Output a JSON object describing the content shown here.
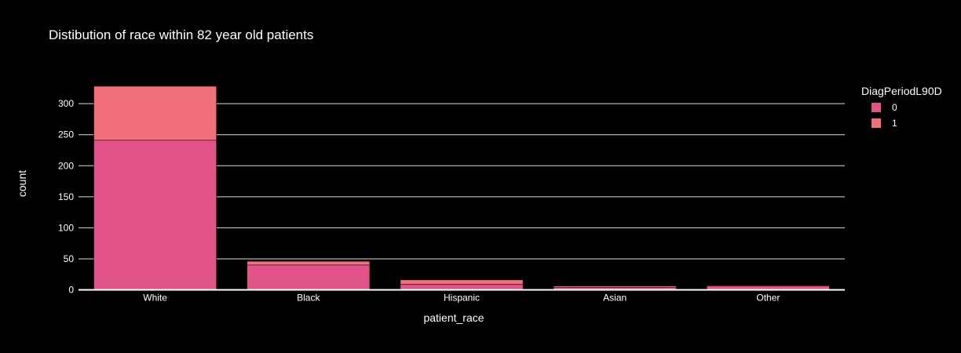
{
  "chart_data": {
    "type": "bar",
    "barmode": "stack",
    "title": "Distibution of race within 82 year old patients",
    "xlabel": "patient_race",
    "ylabel": "count",
    "categories": [
      "White",
      "Black",
      "Hispanic",
      "Asian",
      "Other"
    ],
    "series": [
      {
        "name": "0",
        "values": [
          241,
          40,
          9,
          4,
          6
        ],
        "color": "#e2538a"
      },
      {
        "name": "1",
        "values": [
          87,
          6,
          7,
          2,
          1
        ],
        "color": "#f2707c"
      }
    ],
    "ylim": [
      0,
      328
    ],
    "yticks": [
      0,
      50,
      100,
      150,
      200,
      250,
      300
    ],
    "grid": true,
    "legend": {
      "title": "DiagPeriodL90D",
      "placement": "top-right"
    }
  }
}
